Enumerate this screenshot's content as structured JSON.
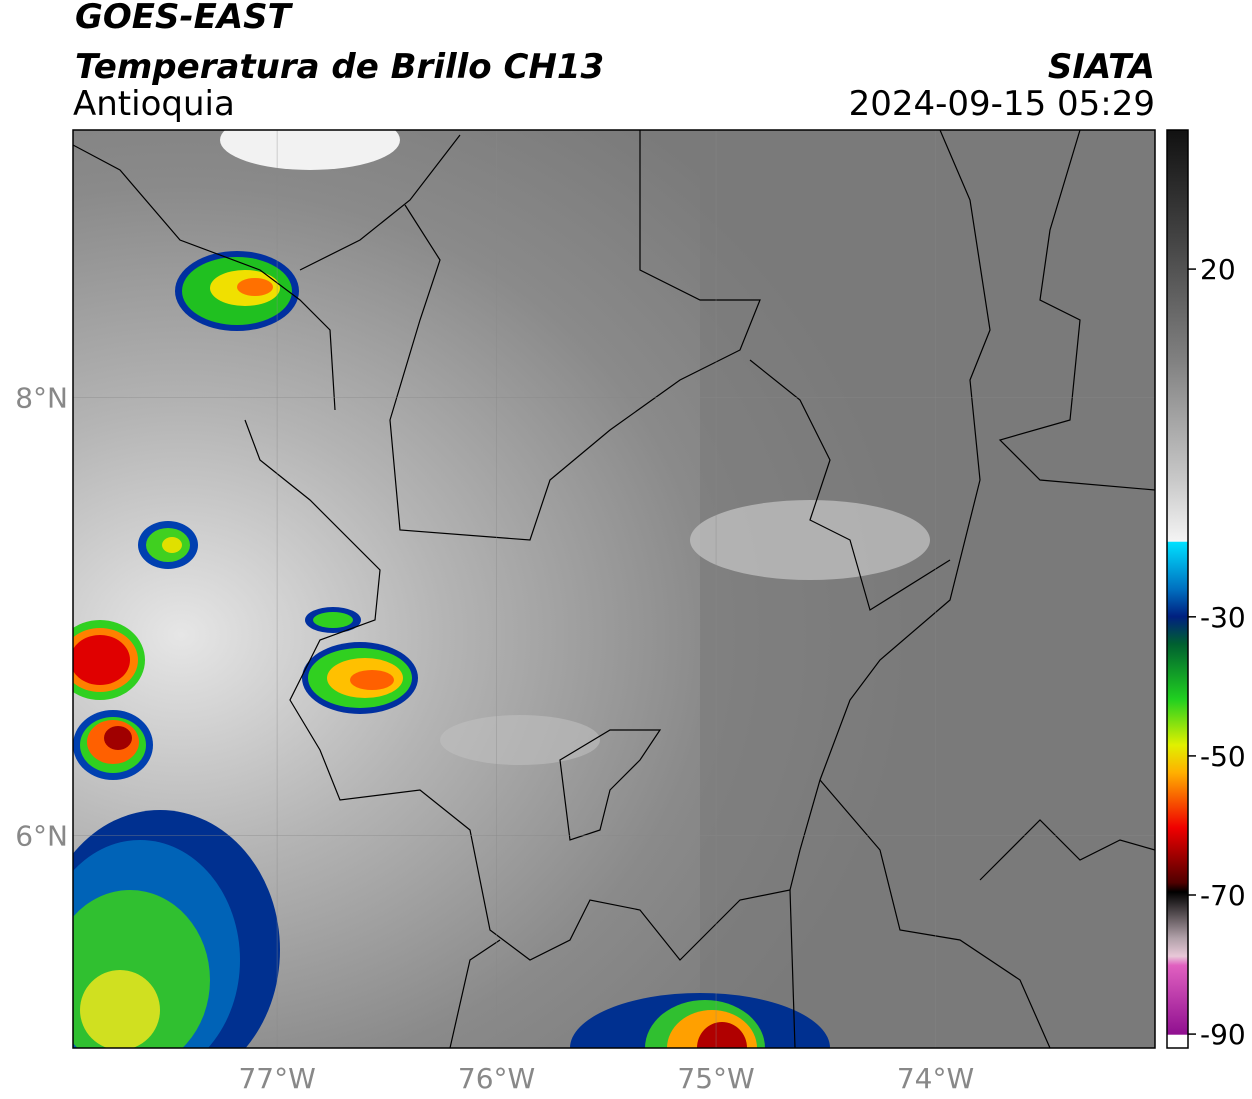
{
  "header": {
    "title": "GOES-EAST",
    "subtitle": "Temperatura de Brillo CH13",
    "region": "Antioquia",
    "source": "SIATA",
    "datetime": "2024-09-15 05:29"
  },
  "map": {
    "xlim": [
      -77.93,
      -73.0
    ],
    "ylim": [
      5.03,
      9.22
    ],
    "xticks": [
      {
        "value": -77,
        "label": "77°W"
      },
      {
        "value": -76,
        "label": "76°W"
      },
      {
        "value": -75,
        "label": "75°W"
      },
      {
        "value": -74,
        "label": "74°W"
      }
    ],
    "yticks": [
      {
        "value": 8,
        "label": "8°N"
      },
      {
        "value": 6,
        "label": "6°N"
      }
    ],
    "grid": true
  },
  "colorbar": {
    "lim": [
      -92,
      40
    ],
    "ticks": [
      20,
      -30,
      -50,
      -70,
      -90
    ]
  }
}
